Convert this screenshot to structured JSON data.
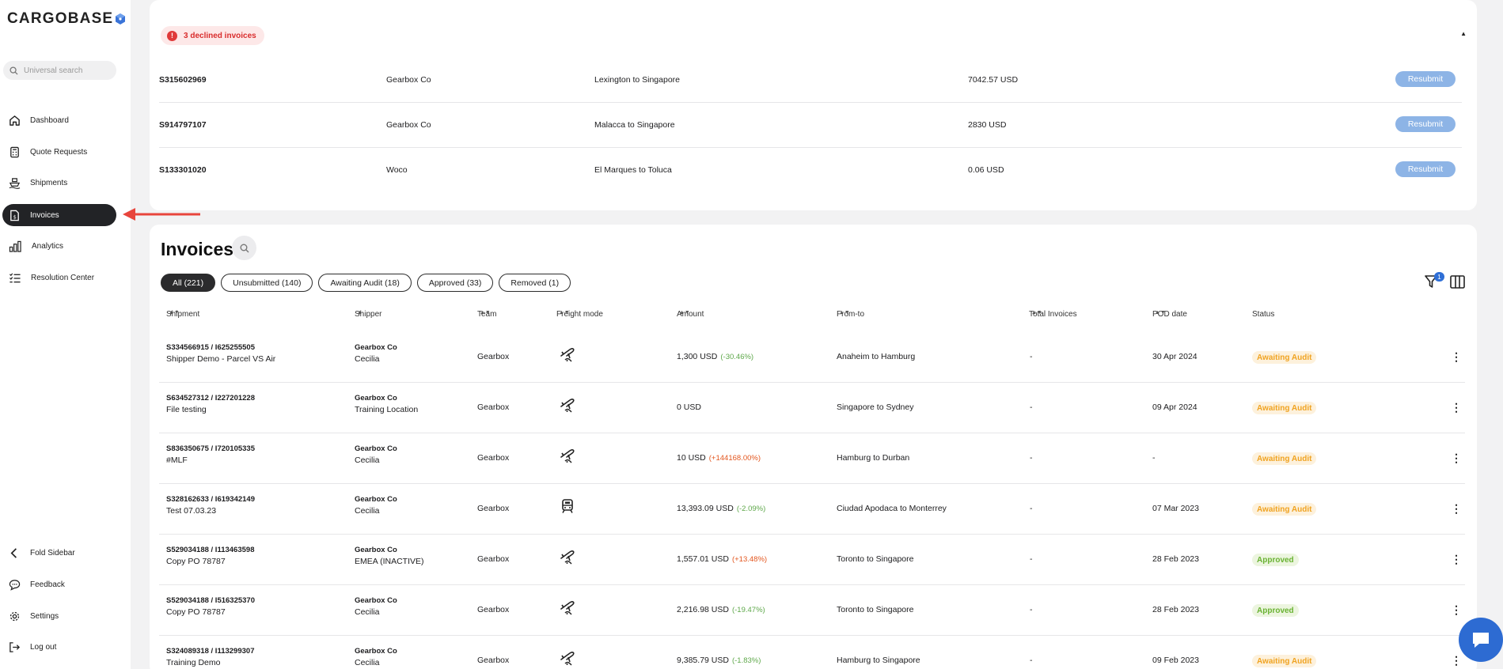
{
  "brand": {
    "name": "CARGOBASE",
    "logo_icon": "cube-logo-icon"
  },
  "search": {
    "placeholder": "Universal search"
  },
  "nav": {
    "items": [
      {
        "label": "Dashboard",
        "icon": "home-icon"
      },
      {
        "label": "Quote Requests",
        "icon": "calculator-icon"
      },
      {
        "label": "Shipments",
        "icon": "ship-icon"
      },
      {
        "label": "Invoices",
        "icon": "invoice-icon",
        "active": true
      },
      {
        "label": "Analytics",
        "icon": "bar-chart-icon"
      },
      {
        "label": "Resolution Center",
        "icon": "checklist-icon"
      }
    ],
    "bottom": [
      {
        "label": "Fold Sidebar",
        "icon": "chevron-left-icon"
      },
      {
        "label": "Feedback",
        "icon": "chat-bubble-icon"
      },
      {
        "label": "Settings",
        "icon": "gear-icon"
      },
      {
        "label": "Log out",
        "icon": "logout-icon"
      }
    ]
  },
  "declined": {
    "badge": "3 declined invoices",
    "rows": [
      {
        "id": "S315602969",
        "shipper": "Gearbox Co",
        "route": "Lexington to Singapore",
        "amount": "7042.57 USD",
        "action": "Resubmit"
      },
      {
        "id": "S914797107",
        "shipper": "Gearbox Co",
        "route": "Malacca to Singapore",
        "amount": "2830 USD",
        "action": "Resubmit"
      },
      {
        "id": "S133301020",
        "shipper": "Woco",
        "route": "El Marques to Toluca",
        "amount": "0.06 USD",
        "action": "Resubmit"
      }
    ]
  },
  "invoices": {
    "title": "Invoices",
    "tabs": [
      "All (221)",
      "Unsubmitted (140)",
      "Awaiting Audit (18)",
      "Approved (33)",
      "Removed (1)"
    ],
    "filter_count": "1",
    "columns": [
      "Shipment",
      "Shipper",
      "Team",
      "Freight mode",
      "Amount",
      "From-to",
      "Total Invoices",
      "POD date",
      "Status"
    ],
    "rows": [
      {
        "shipment": "S334566915 / I625255505",
        "shipment_sub": "Shipper Demo - Parcel VS Air",
        "shipper": "Gearbox Co",
        "shipper_sub": "Cecilia",
        "team": "Gearbox",
        "mode": "air",
        "amount": "1,300 USD",
        "delta": "(-30.46%)",
        "delta_dir": "neg",
        "route": "Anaheim to Hamburg",
        "total": "-",
        "pod": "30 Apr 2024",
        "status": "Awaiting Audit"
      },
      {
        "shipment": "S634527312 / I227201228",
        "shipment_sub": "File testing",
        "shipper": "Gearbox Co",
        "shipper_sub": "Training Location",
        "team": "Gearbox",
        "mode": "air",
        "amount": "0 USD",
        "delta": "",
        "delta_dir": "",
        "route": "Singapore to Sydney",
        "total": "-",
        "pod": "09 Apr 2024",
        "status": "Awaiting Audit"
      },
      {
        "shipment": "S836350675 / I720105335",
        "shipment_sub": "#MLF",
        "shipper": "Gearbox Co",
        "shipper_sub": "Cecilia",
        "team": "Gearbox",
        "mode": "air",
        "amount": "10 USD",
        "delta": "(+144168.00%)",
        "delta_dir": "pos",
        "route": "Hamburg to Durban",
        "total": "-",
        "pod": "-",
        "status": "Awaiting Audit"
      },
      {
        "shipment": "S328162633 / I619342149",
        "shipment_sub": "Test 07.03.23",
        "shipper": "Gearbox Co",
        "shipper_sub": "Cecilia",
        "team": "Gearbox",
        "mode": "rail",
        "amount": "13,393.09 USD",
        "delta": "(-2.09%)",
        "delta_dir": "neg",
        "route": "Ciudad Apodaca to Monterrey",
        "total": "-",
        "pod": "07 Mar 2023",
        "status": "Awaiting Audit"
      },
      {
        "shipment": "S529034188 / I113463598",
        "shipment_sub": "Copy PO 78787",
        "shipper": "Gearbox Co",
        "shipper_sub": "EMEA (INACTIVE)",
        "team": "Gearbox",
        "mode": "air",
        "amount": "1,557.01 USD",
        "delta": "(+13.48%)",
        "delta_dir": "pos",
        "route": "Toronto to Singapore",
        "total": "-",
        "pod": "28 Feb 2023",
        "status": "Approved"
      },
      {
        "shipment": "S529034188 / I516325370",
        "shipment_sub": "Copy PO 78787",
        "shipper": "Gearbox Co",
        "shipper_sub": "Cecilia",
        "team": "Gearbox",
        "mode": "air",
        "amount": "2,216.98 USD",
        "delta": "(-19.47%)",
        "delta_dir": "neg",
        "route": "Toronto to Singapore",
        "total": "-",
        "pod": "28 Feb 2023",
        "status": "Approved"
      },
      {
        "shipment": "S324089318 / I113299307",
        "shipment_sub": "Training Demo",
        "shipper": "Gearbox Co",
        "shipper_sub": "Cecilia",
        "team": "Gearbox",
        "mode": "air",
        "amount": "9,385.79 USD",
        "delta": "(-1.83%)",
        "delta_dir": "neg",
        "route": "Hamburg to Singapore",
        "total": "-",
        "pod": "09 Feb 2023",
        "status": "Awaiting Audit"
      }
    ]
  },
  "colors": {
    "accent_blue": "#2d6bd2",
    "declined_red": "#d92c2c",
    "awaiting": "#f0a321",
    "approved": "#69b232",
    "annotation_arrow": "#e8453c"
  }
}
